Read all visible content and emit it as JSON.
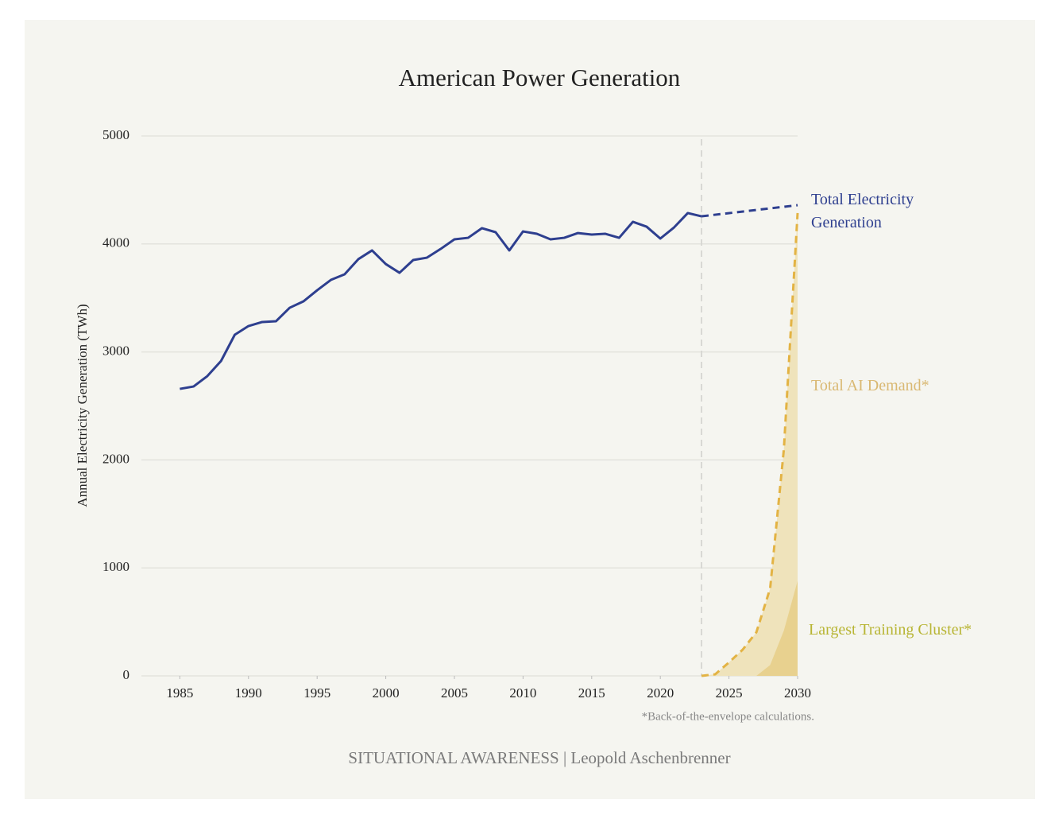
{
  "chart_data": {
    "type": "line",
    "title": "American Power Generation",
    "ylabel": "Annual Electricity Generation (TWh)",
    "footnote": "*Back-of-the-envelope calculations.",
    "source": "SITUATIONAL AWARENESS | Leopold Aschenbrenner",
    "xlim": [
      1982.2,
      2030
    ],
    "ylim": [
      0,
      5000
    ],
    "xticks": [
      1985,
      1990,
      1995,
      2000,
      2005,
      2010,
      2015,
      2020,
      2025,
      2030
    ],
    "yticks": [
      0,
      1000,
      2000,
      3000,
      4000,
      5000
    ],
    "grid": true,
    "vline": 2023,
    "series": [
      {
        "name": "Total Electricity Generation",
        "color": "#2e3f8f",
        "style": "solid",
        "x": [
          1985,
          1986,
          1987,
          1988,
          1989,
          1990,
          1991,
          1992,
          1993,
          1994,
          1995,
          1996,
          1997,
          1998,
          1999,
          2000,
          2001,
          2002,
          2003,
          2004,
          2005,
          2006,
          2007,
          2008,
          2009,
          2010,
          2011,
          2012,
          2013,
          2014,
          2015,
          2016,
          2017,
          2018,
          2019,
          2020,
          2021,
          2022,
          2023
        ],
        "values": [
          2658,
          2680,
          2776,
          2916,
          3159,
          3240,
          3277,
          3284,
          3409,
          3468,
          3571,
          3667,
          3719,
          3859,
          3940,
          3814,
          3733,
          3851,
          3873,
          3954,
          4043,
          4057,
          4146,
          4109,
          3940,
          4116,
          4094,
          4043,
          4057,
          4101,
          4087,
          4094,
          4057,
          4205,
          4160,
          4050,
          4153,
          4286,
          4256
        ]
      },
      {
        "color": "#2e3f8f",
        "style": "dashed",
        "x": [
          2023,
          2030
        ],
        "values": [
          4256,
          4359
        ]
      },
      {
        "name": "Total AI Demand*",
        "color": "#e3b344",
        "label_color": "#d9b872",
        "fill": "#efe3bb",
        "style": "dashed",
        "x": [
          2023,
          2024,
          2025,
          2026,
          2027,
          2028,
          2029,
          2030
        ],
        "values": [
          0,
          15,
          125,
          243,
          405,
          810,
          2100,
          4286
        ]
      },
      {
        "name": "Largest Training Cluster*",
        "color": "#e8d18f",
        "label_color": "#b8b534",
        "style": "area",
        "x": [
          2027,
          2028,
          2029,
          2030
        ],
        "values": [
          0,
          100,
          420,
          880
        ]
      }
    ]
  }
}
